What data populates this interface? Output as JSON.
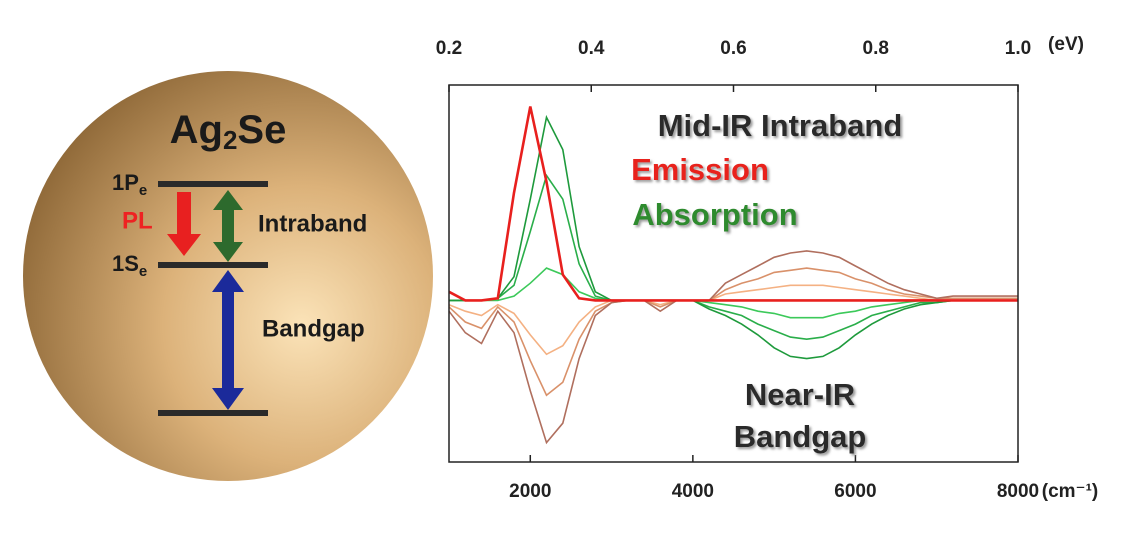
{
  "diagram": {
    "title": {
      "base": "Ag",
      "sub": "2",
      "rest": "Se"
    },
    "levels": [
      {
        "label": "1P",
        "sub": "e"
      },
      {
        "label": "1S",
        "sub": "e"
      }
    ],
    "pl": "PL",
    "intraband": "Intraband",
    "bandgap": "Bandgap"
  },
  "chart_data": {
    "type": "line",
    "x": [
      1000,
      1200,
      1400,
      1600,
      1800,
      2000,
      2200,
      2400,
      2600,
      2800,
      3000,
      3200,
      3400,
      3600,
      3800,
      4000,
      4200,
      4400,
      4600,
      4800,
      5000,
      5200,
      5400,
      5600,
      5800,
      6000,
      6200,
      6400,
      6600,
      6800,
      7000,
      7200,
      7400,
      7600,
      7800,
      8000
    ],
    "xlim": [
      1000,
      8000
    ],
    "xticks": [
      2000,
      4000,
      6000,
      8000
    ],
    "x_label": "(cm⁻¹)",
    "x2lim": [
      0.2,
      1.0
    ],
    "x2ticks": [
      0.2,
      0.4,
      0.6,
      0.8,
      {
        "value": 1,
        "label": "1.0"
      }
    ],
    "x2_label": "(eV)",
    "ylim": [
      -0.75,
      1.0
    ],
    "series": [
      {
        "color": "#f4b183",
        "values": [
          -0.02,
          -0.05,
          -0.07,
          -0.02,
          -0.06,
          -0.16,
          -0.25,
          -0.21,
          -0.1,
          -0.03,
          0,
          0,
          0,
          -0.02,
          0,
          0,
          0,
          0.03,
          0.04,
          0.05,
          0.06,
          0.07,
          0.07,
          0.07,
          0.06,
          0.05,
          0.04,
          0.03,
          0.02,
          0.01,
          0,
          0,
          0,
          0,
          0,
          0
        ]
      },
      {
        "color": "#d9916a",
        "values": [
          -0.03,
          -0.1,
          -0.13,
          -0.03,
          -0.1,
          -0.28,
          -0.44,
          -0.38,
          -0.18,
          -0.05,
          -0.01,
          0,
          0,
          -0.03,
          0,
          0,
          0,
          0.05,
          0.08,
          0.1,
          0.13,
          0.14,
          0.15,
          0.14,
          0.13,
          0.1,
          0.08,
          0.05,
          0.03,
          0.02,
          0.01,
          0.01,
          0.01,
          0.01,
          0.01,
          0.01
        ]
      },
      {
        "color": "#b06f5e",
        "values": [
          -0.05,
          -0.15,
          -0.2,
          -0.05,
          -0.15,
          -0.42,
          -0.66,
          -0.57,
          -0.27,
          -0.07,
          -0.01,
          0,
          0,
          -0.05,
          0,
          0,
          0,
          0.08,
          0.12,
          0.16,
          0.2,
          0.22,
          0.23,
          0.22,
          0.2,
          0.16,
          0.12,
          0.08,
          0.05,
          0.03,
          0.01,
          0.02,
          0.02,
          0.02,
          0.02,
          0.02
        ]
      },
      {
        "color": "#3cc95a",
        "values": [
          0,
          0,
          0,
          0,
          0.02,
          0.08,
          0.15,
          0.12,
          0.04,
          0.01,
          0,
          0,
          0,
          0,
          0,
          0,
          -0.01,
          -0.02,
          -0.03,
          -0.05,
          -0.06,
          -0.08,
          -0.08,
          -0.08,
          -0.06,
          -0.05,
          -0.03,
          -0.02,
          -0.01,
          0,
          0,
          0,
          0,
          0,
          0,
          0
        ]
      },
      {
        "color": "#2aae4a",
        "values": [
          0,
          0,
          0,
          0.01,
          0.07,
          0.32,
          0.58,
          0.47,
          0.17,
          0.02,
          0,
          0,
          0,
          0,
          0,
          0,
          -0.03,
          -0.05,
          -0.07,
          -0.11,
          -0.14,
          -0.17,
          -0.18,
          -0.17,
          -0.14,
          -0.11,
          -0.07,
          -0.05,
          -0.03,
          -0.01,
          -0.01,
          0,
          0,
          0,
          0,
          0
        ]
      },
      {
        "color": "#1e9a3c",
        "values": [
          0,
          0,
          0,
          0.01,
          0.11,
          0.47,
          0.85,
          0.7,
          0.25,
          0.04,
          0,
          0,
          0,
          0,
          0,
          0,
          -0.04,
          -0.07,
          -0.11,
          -0.16,
          -0.22,
          -0.26,
          -0.27,
          -0.26,
          -0.22,
          -0.16,
          -0.11,
          -0.07,
          -0.04,
          -0.02,
          -0.01,
          0,
          0,
          0,
          0,
          0
        ]
      },
      {
        "color": "#e8201e",
        "values": [
          0.04,
          0,
          0,
          0.01,
          0.5,
          0.9,
          0.55,
          0.12,
          0.01,
          0,
          0,
          0,
          0,
          0,
          0,
          0,
          0,
          0,
          0,
          0,
          0,
          0,
          0,
          0,
          0,
          0,
          0,
          0,
          0,
          0,
          0,
          0,
          0,
          0,
          0,
          0
        ]
      }
    ],
    "annotations": [
      {
        "text": "Mid-IR Intraband",
        "color": "#2b2b2b"
      },
      {
        "text": "Emission",
        "color": "#e8201e"
      },
      {
        "text": "Absorption",
        "color": "#2e8b2e"
      },
      {
        "text": "Near-IR",
        "color": "#2b2b2b"
      },
      {
        "text": "Bandgap",
        "color": "#2b2b2b"
      }
    ]
  }
}
